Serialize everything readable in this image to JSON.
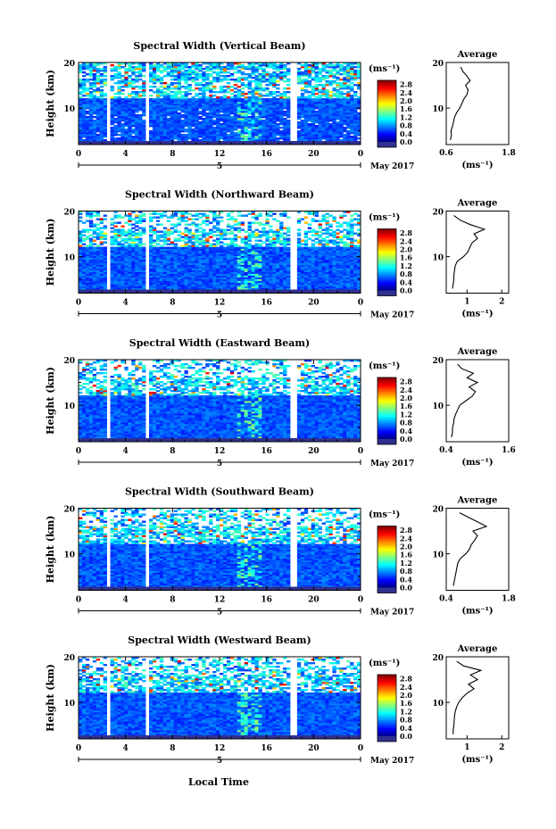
{
  "figure": {
    "x_axis_label": "Local Time",
    "date_label": "May 2017",
    "date_tick": "5",
    "x_ticks": [
      "0",
      "4",
      "8",
      "12",
      "16",
      "20",
      "0"
    ],
    "y_label": "Height (km)",
    "y_ticks": [
      "10",
      "20"
    ],
    "colorbar_unit": "(ms⁻¹)",
    "colorbar_ticks": [
      "0.0",
      "0.4",
      "0.8",
      "1.2",
      "1.6",
      "2.0",
      "2.4",
      "2.8"
    ],
    "average_title": "Average",
    "average_unit": "(ms⁻¹)",
    "colors": {
      "background": "#ffffff",
      "low": "#1e3fd0",
      "high": "#e01010",
      "bottom_strip": "#303090"
    }
  },
  "chart_data": [
    {
      "type": "heatmap",
      "title": "Spectral Width (Vertical Beam)",
      "x": "local time (h)",
      "xlim": [
        0,
        24
      ],
      "ylim": [
        2,
        20
      ],
      "clim": [
        0.0,
        3.0
      ],
      "data_gaps_hours": [
        [
          2.3,
          2.7
        ],
        [
          5.7,
          6.1
        ],
        [
          18.1,
          18.5
        ]
      ],
      "average_profile": {
        "xlim": [
          0.6,
          1.8
        ],
        "ticks": [
          "0.6",
          "1.8"
        ],
        "heights": [
          3,
          4,
          5,
          6,
          7,
          8,
          9,
          10,
          11,
          12,
          13,
          14,
          15,
          16,
          17,
          18,
          19
        ],
        "values": [
          0.68,
          0.7,
          0.69,
          0.72,
          0.74,
          0.76,
          0.8,
          0.86,
          0.9,
          0.94,
          1.0,
          1.02,
          0.97,
          1.06,
          1.0,
          0.92,
          0.88
        ]
      }
    },
    {
      "type": "heatmap",
      "title": "Spectral Width (Northward Beam)",
      "x": "local time (h)",
      "xlim": [
        0,
        24
      ],
      "ylim": [
        2,
        20
      ],
      "clim": [
        0.0,
        3.0
      ],
      "data_gaps_hours": [
        [
          2.3,
          2.7
        ],
        [
          5.7,
          6.1
        ],
        [
          18.1,
          18.5
        ]
      ],
      "average_profile": {
        "xlim": [
          0.4,
          2.2
        ],
        "ticks": [
          "1",
          "2"
        ],
        "heights": [
          3,
          4,
          5,
          6,
          7,
          8,
          9,
          10,
          11,
          12,
          13,
          14,
          15,
          16,
          17,
          18,
          19
        ],
        "values": [
          0.58,
          0.6,
          0.62,
          0.62,
          0.64,
          0.66,
          0.72,
          0.9,
          1.02,
          1.08,
          1.14,
          1.3,
          1.2,
          1.5,
          1.1,
          0.8,
          0.62
        ]
      }
    },
    {
      "type": "heatmap",
      "title": "Spectral Width (Eastward Beam)",
      "x": "local time (h)",
      "xlim": [
        0,
        24
      ],
      "ylim": [
        2,
        20
      ],
      "clim": [
        0.0,
        3.0
      ],
      "data_gaps_hours": [
        [
          2.3,
          2.7
        ],
        [
          5.7,
          6.1
        ],
        [
          18.1,
          18.5
        ]
      ],
      "average_profile": {
        "xlim": [
          0.4,
          1.6
        ],
        "ticks": [
          "0.4",
          "1.6"
        ],
        "heights": [
          3,
          4,
          5,
          6,
          7,
          8,
          9,
          10,
          11,
          12,
          13,
          14,
          15,
          16,
          17,
          18,
          19
        ],
        "values": [
          0.5,
          0.52,
          0.52,
          0.54,
          0.55,
          0.58,
          0.62,
          0.66,
          0.78,
          0.9,
          0.96,
          0.84,
          1.0,
          0.8,
          0.92,
          0.7,
          0.62
        ]
      }
    },
    {
      "type": "heatmap",
      "title": "Spectral Width (Southward Beam)",
      "x": "local time (h)",
      "xlim": [
        0,
        24
      ],
      "ylim": [
        2,
        20
      ],
      "clim": [
        0.0,
        3.0
      ],
      "data_gaps_hours": [
        [
          2.3,
          2.7
        ],
        [
          5.7,
          6.1
        ],
        [
          18.1,
          18.5
        ]
      ],
      "average_profile": {
        "xlim": [
          0.4,
          1.8
        ],
        "ticks": [
          "0.4",
          "1.8"
        ],
        "heights": [
          3,
          4,
          5,
          6,
          7,
          8,
          9,
          10,
          11,
          12,
          13,
          14,
          15,
          16,
          17,
          18,
          19
        ],
        "values": [
          0.56,
          0.58,
          0.6,
          0.62,
          0.64,
          0.66,
          0.72,
          0.84,
          0.92,
          0.96,
          1.04,
          1.1,
          1.0,
          1.3,
          1.1,
          0.9,
          0.7
        ]
      }
    },
    {
      "type": "heatmap",
      "title": "Spectral Width (Westward Beam)",
      "x": "local time (h)",
      "xlim": [
        0,
        24
      ],
      "ylim": [
        2,
        20
      ],
      "clim": [
        0.0,
        3.0
      ],
      "data_gaps_hours": [
        [
          2.3,
          2.7
        ],
        [
          5.7,
          6.1
        ],
        [
          18.1,
          18.5
        ]
      ],
      "average_profile": {
        "xlim": [
          0.4,
          2.2
        ],
        "ticks": [
          "1",
          "2"
        ],
        "heights": [
          3,
          4,
          5,
          6,
          7,
          8,
          9,
          10,
          11,
          12,
          13,
          14,
          15,
          16,
          17,
          18,
          19
        ],
        "values": [
          0.6,
          0.6,
          0.62,
          0.63,
          0.64,
          0.66,
          0.7,
          0.76,
          0.86,
          1.0,
          1.2,
          1.04,
          1.3,
          1.1,
          1.4,
          0.9,
          0.7
        ]
      }
    }
  ]
}
